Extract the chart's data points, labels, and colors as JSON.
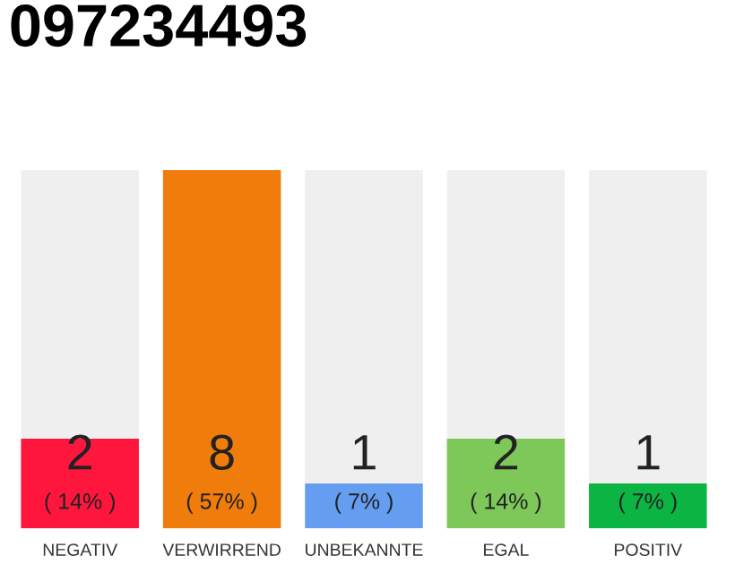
{
  "chart_data": {
    "type": "bar",
    "title": "097234493",
    "categories": [
      "NEGATIV",
      "VERWIRREND",
      "UNBEKANNTE",
      "EGAL",
      "POSITIV"
    ],
    "values": [
      2,
      8,
      1,
      2,
      1
    ],
    "colors": [
      "#ff163c",
      "#f07c0c",
      "#659ef0",
      "#7ec85a",
      "#0bb443"
    ],
    "value_labels": [
      "2\n( 14% )",
      "8\n( 57% )",
      "1\n( 7% )",
      "2\n( 14% )",
      "1\n( 7% )"
    ],
    "grid": false,
    "legend": false
  }
}
